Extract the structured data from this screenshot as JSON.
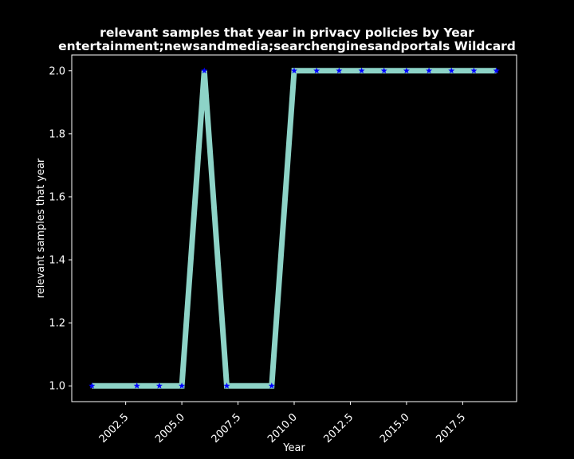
{
  "colors": {
    "background": "#000000",
    "axes": "#ffffff",
    "line": "#8dd3c7",
    "marker": "#0000ff"
  },
  "chart_data": {
    "type": "line",
    "title": "relevant samples that year in privacy policies by Year",
    "subtitle": "entertainment;newsandmedia;searchenginesandportals Wildcard",
    "xlabel": "Year",
    "ylabel": "relevant samples that year",
    "xlim": [
      2000.1,
      2019.9
    ],
    "ylim": [
      0.95,
      2.05
    ],
    "x_ticks": [
      "2002.5",
      "2005.0",
      "2007.5",
      "2010.0",
      "2012.5",
      "2015.0",
      "2017.5"
    ],
    "y_ticks": [
      "1.0",
      "1.2",
      "1.4",
      "1.6",
      "1.8",
      "2.0"
    ],
    "grid": false,
    "legend": false,
    "marker": "star",
    "series": [
      {
        "x": [
          2001,
          2003,
          2004,
          2005,
          2006,
          2007,
          2009,
          2010,
          2011,
          2012,
          2013,
          2014,
          2015,
          2016,
          2017,
          2018,
          2019
        ],
        "y": [
          1,
          1,
          1,
          1,
          2,
          1,
          1,
          2,
          2,
          2,
          2,
          2,
          2,
          2,
          2,
          2,
          2
        ]
      }
    ]
  }
}
